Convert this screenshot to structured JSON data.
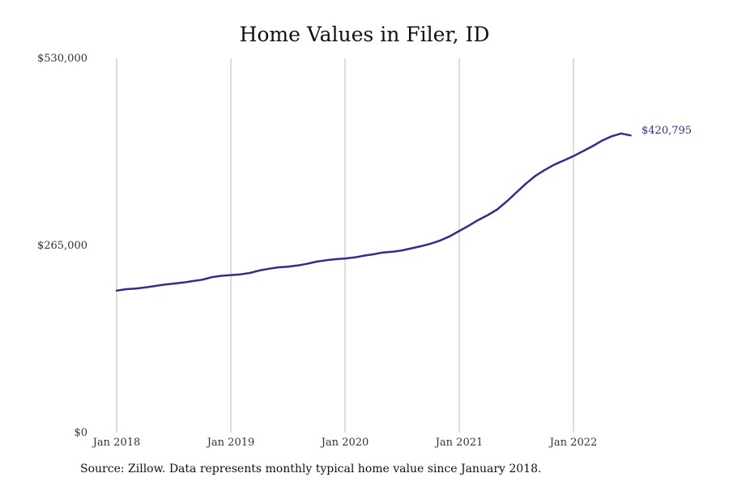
{
  "chart_data": {
    "type": "line",
    "title": "Home Values in Filer, ID",
    "source_note": "Source: Zillow. Data represents monthly typical home value since January 2018.",
    "xlabel": "",
    "ylabel": "",
    "x_tick_labels": [
      "Jan 2018",
      "Jan 2019",
      "Jan 2020",
      "Jan 2021",
      "Jan 2022"
    ],
    "y_tick_labels": [
      "$0",
      "$265,000",
      "$530,000"
    ],
    "ylim": [
      0,
      530000
    ],
    "grid": "vertical",
    "line_color": "#2e2e8f",
    "grid_color": "#bbbbbb",
    "end_label": "$420,795",
    "series": [
      {
        "x": [
          "2018-01",
          "2018-02",
          "2018-03",
          "2018-04",
          "2018-05",
          "2018-06",
          "2018-07",
          "2018-08",
          "2018-09",
          "2018-10",
          "2018-11",
          "2018-12",
          "2019-01",
          "2019-02",
          "2019-03",
          "2019-04",
          "2019-05",
          "2019-06",
          "2019-07",
          "2019-08",
          "2019-09",
          "2019-10",
          "2019-11",
          "2019-12",
          "2020-01",
          "2020-02",
          "2020-03",
          "2020-04",
          "2020-05",
          "2020-06",
          "2020-07",
          "2020-08",
          "2020-09",
          "2020-10",
          "2020-11",
          "2020-12",
          "2021-01",
          "2021-02",
          "2021-03",
          "2021-04",
          "2021-05",
          "2021-06",
          "2021-07",
          "2021-08",
          "2021-09",
          "2021-10",
          "2021-11",
          "2021-12",
          "2022-01",
          "2022-02",
          "2022-03",
          "2022-04",
          "2022-05",
          "2022-06",
          "2022-07"
        ],
        "values": [
          201000,
          203000,
          204000,
          205500,
          207500,
          209500,
          211000,
          212500,
          214500,
          216500,
          220000,
          222000,
          223000,
          224000,
          226000,
          229500,
          232000,
          234000,
          235000,
          236500,
          239000,
          242000,
          244000,
          245500,
          246500,
          248000,
          250500,
          252500,
          255000,
          256000,
          258000,
          261000,
          264000,
          267500,
          272000,
          278000,
          285500,
          293000,
          301000,
          308000,
          316000,
          327500,
          340000,
          352500,
          363500,
          372000,
          379500,
          385500,
          391500,
          398500,
          405500,
          413500,
          419500,
          423500,
          420795
        ]
      }
    ]
  }
}
